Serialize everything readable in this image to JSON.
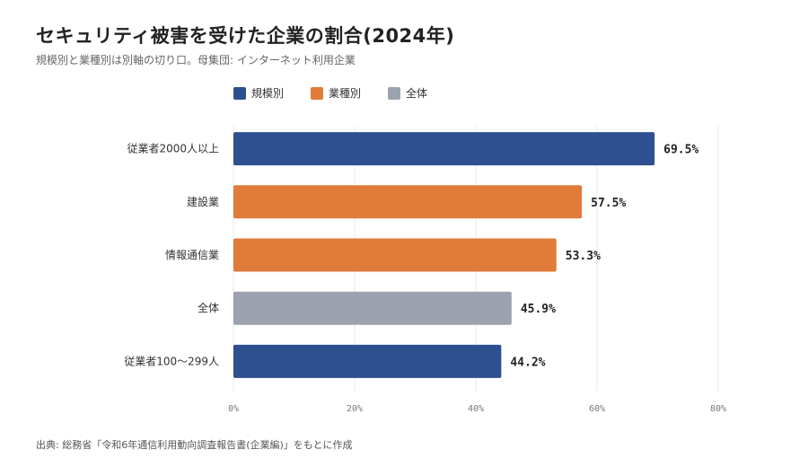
{
  "title": "セキュリティ被害を受けた企業の割合(2024年)",
  "subtitle": "規模別と業種別は別軸の切り口。母集団: インターネット利用企業",
  "source": "出典: 総務省「令和6年通信利用動向調査報告書(企業編)」をもとに作成",
  "legend": [
    {
      "label": "規模別",
      "color": "#2e5090"
    },
    {
      "label": "業種別",
      "color": "#e07b39"
    },
    {
      "label": "全体",
      "color": "#9ca3af"
    }
  ],
  "chart_data": {
    "type": "bar",
    "orientation": "horizontal",
    "categories": [
      "従業者2000人以上",
      "建設業",
      "情報通信業",
      "全体",
      "従業者100〜299人"
    ],
    "values": [
      69.5,
      57.5,
      53.3,
      45.9,
      44.2
    ],
    "value_labels": [
      "69.5%",
      "57.5%",
      "53.3%",
      "45.9%",
      "44.2%"
    ],
    "groups": [
      "規模別",
      "業種別",
      "業種別",
      "全体",
      "規模別"
    ],
    "xlim": [
      0,
      80
    ],
    "xticks": [
      0,
      20,
      40,
      60,
      80
    ],
    "xtick_labels": [
      "0%",
      "20%",
      "40%",
      "60%",
      "80%"
    ],
    "grid": true
  }
}
